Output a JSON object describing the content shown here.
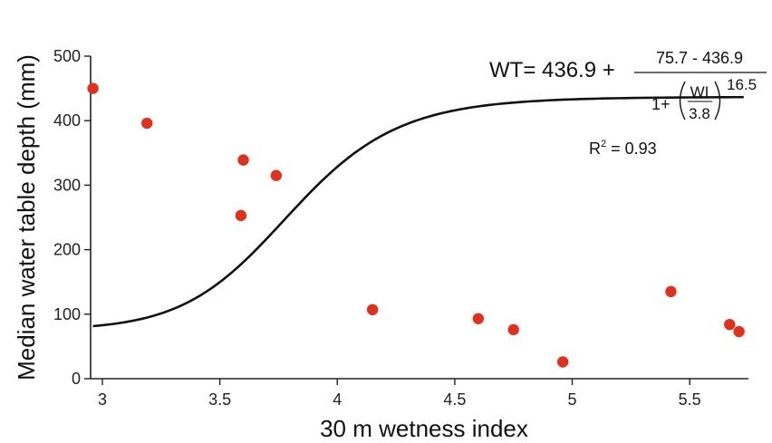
{
  "chart_data": {
    "type": "scatter",
    "xlabel": "30 m wetness index",
    "ylabel": "Median water table depth (mm)",
    "xlim": [
      2.95,
      5.75
    ],
    "ylim": [
      0,
      500
    ],
    "x_ticks": [
      "3",
      "3.5",
      "4",
      "4.5",
      "5",
      "5.5"
    ],
    "y_ticks": [
      "0",
      "100",
      "200",
      "300",
      "400",
      "500"
    ],
    "grid": false,
    "colors": {
      "points": "#e0301e",
      "curve": "#111111",
      "axis": "#222222"
    },
    "points": [
      {
        "x": 2.96,
        "y": 450
      },
      {
        "x": 3.19,
        "y": 396
      },
      {
        "x": 3.59,
        "y": 253
      },
      {
        "x": 3.6,
        "y": 339
      },
      {
        "x": 3.74,
        "y": 315
      },
      {
        "x": 4.15,
        "y": 107
      },
      {
        "x": 4.6,
        "y": 93
      },
      {
        "x": 4.75,
        "y": 76
      },
      {
        "x": 4.96,
        "y": 26
      },
      {
        "x": 5.42,
        "y": 135
      },
      {
        "x": 5.67,
        "y": 84
      },
      {
        "x": 5.71,
        "y": 73
      }
    ],
    "fit": {
      "top": 436.9,
      "bottom": 75.7,
      "x0": 3.8,
      "power": 16.5,
      "x_range": [
        2.96,
        5.73
      ]
    },
    "equation": {
      "lhs": "WT= 436.9 +",
      "numerator": "75.7 - 436.9",
      "denom_prefix": "1+",
      "ratio_num": "WI",
      "ratio_den": "3.8",
      "exponent": "16.5",
      "r2_label": "R",
      "r2_sup": "2",
      "r2_value": " = 0.93"
    }
  }
}
